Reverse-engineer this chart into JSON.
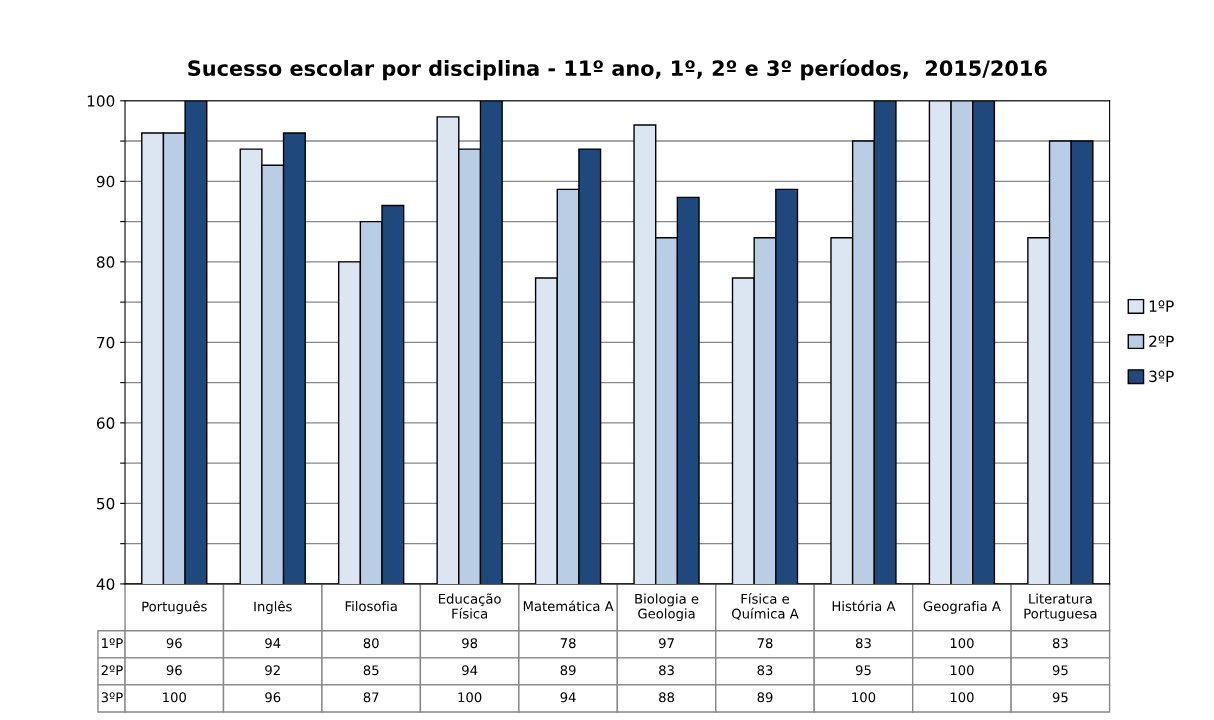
{
  "chart_data": {
    "type": "bar",
    "title": "Sucesso escolar por disciplina - 11º ano, 1º, 2º e 3º períodos,  2015/2016",
    "categories": [
      "Português",
      "Inglês",
      "Filosofia",
      "Educação Física",
      "Matemática A",
      "Biologia e Geologia",
      "Física e Química A",
      "História A",
      "Geografia A",
      "Literatura Portuguesa"
    ],
    "series": [
      {
        "name": "1ºP",
        "color": "#dce6f2",
        "values": [
          96,
          94,
          80,
          98,
          78,
          97,
          78,
          83,
          100,
          83
        ]
      },
      {
        "name": "2ºP",
        "color": "#b9cde5",
        "values": [
          96,
          92,
          85,
          94,
          89,
          83,
          83,
          95,
          100,
          95
        ]
      },
      {
        "name": "3ºP",
        "color": "#1f497d",
        "values": [
          100,
          96,
          87,
          100,
          94,
          88,
          89,
          100,
          100,
          95
        ]
      }
    ],
    "ylim": [
      40,
      100
    ],
    "yticks": [
      40,
      {
        "value": 45,
        "label": null
      },
      50,
      {
        "value": 55,
        "label": null
      },
      60,
      {
        "value": 65,
        "label": null
      },
      70,
      {
        "value": 75,
        "label": null
      },
      80,
      {
        "value": 85,
        "label": null
      },
      90,
      {
        "value": 95,
        "label": null
      },
      100
    ],
    "grid": "y",
    "legend": "right",
    "data_labels": true
  }
}
